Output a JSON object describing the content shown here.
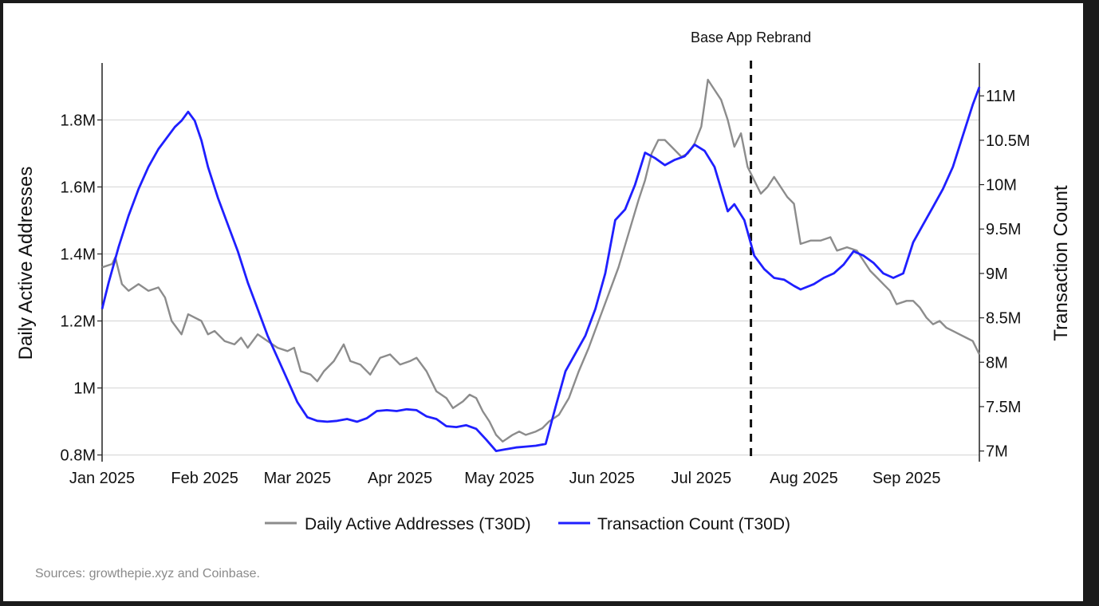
{
  "source_note": "Sources: growthepie.xyz and Coinbase.",
  "chart_data": {
    "type": "line",
    "x_tick_labels": [
      "Jan 2025",
      "Feb 2025",
      "Mar 2025",
      "Apr 2025",
      "May 2025",
      "Jun 2025",
      "Jul 2025",
      "Aug 2025",
      "Sep 2025"
    ],
    "x_tick_dates": [
      "2025-01-01",
      "2025-02-01",
      "2025-03-01",
      "2025-04-01",
      "2025-05-01",
      "2025-06-01",
      "2025-07-01",
      "2025-08-01",
      "2025-09-01"
    ],
    "xlim": [
      "2025-01-01",
      "2025-09-23"
    ],
    "y_left": {
      "label": "Daily Active Addresses",
      "ticks": [
        0.8,
        1.0,
        1.2,
        1.4,
        1.6,
        1.8
      ],
      "tick_labels": [
        "0.8M",
        "1M",
        "1.2M",
        "1.4M",
        "1.6M",
        "1.8M"
      ],
      "unit": "M",
      "ylim": [
        0.78,
        1.97
      ]
    },
    "y_right": {
      "label": "Transaction Count",
      "ticks": [
        7,
        7.5,
        8,
        8.5,
        9,
        9.5,
        10,
        10.5,
        11
      ],
      "tick_labels": [
        "7M",
        "7.5M",
        "8M",
        "8.5M",
        "9M",
        "9.5M",
        "10M",
        "10.5M",
        "11M"
      ],
      "unit": "M",
      "ylim": [
        6.88,
        11.37
      ]
    },
    "grid": "horizontal",
    "legend_position": "bottom-center",
    "annotation": {
      "label": "Base App Rebrand",
      "date": "2025-07-16",
      "style": "dashed vertical line"
    },
    "series": [
      {
        "name": "Daily Active Addresses (T30D)",
        "axis": "left",
        "color": "#8c8c8c",
        "points": [
          [
            "2025-01-01",
            1.36
          ],
          [
            "2025-01-04",
            1.37
          ],
          [
            "2025-01-05",
            1.39
          ],
          [
            "2025-01-07",
            1.31
          ],
          [
            "2025-01-09",
            1.29
          ],
          [
            "2025-01-12",
            1.31
          ],
          [
            "2025-01-15",
            1.29
          ],
          [
            "2025-01-18",
            1.3
          ],
          [
            "2025-01-20",
            1.27
          ],
          [
            "2025-01-22",
            1.2
          ],
          [
            "2025-01-25",
            1.16
          ],
          [
            "2025-01-27",
            1.22
          ],
          [
            "2025-01-29",
            1.21
          ],
          [
            "2025-01-31",
            1.2
          ],
          [
            "2025-02-02",
            1.16
          ],
          [
            "2025-02-04",
            1.17
          ],
          [
            "2025-02-07",
            1.14
          ],
          [
            "2025-02-10",
            1.13
          ],
          [
            "2025-02-12",
            1.15
          ],
          [
            "2025-02-14",
            1.12
          ],
          [
            "2025-02-17",
            1.16
          ],
          [
            "2025-02-20",
            1.14
          ],
          [
            "2025-02-23",
            1.12
          ],
          [
            "2025-02-26",
            1.11
          ],
          [
            "2025-02-28",
            1.12
          ],
          [
            "2025-03-02",
            1.05
          ],
          [
            "2025-03-05",
            1.04
          ],
          [
            "2025-03-07",
            1.02
          ],
          [
            "2025-03-09",
            1.05
          ],
          [
            "2025-03-12",
            1.08
          ],
          [
            "2025-03-15",
            1.13
          ],
          [
            "2025-03-17",
            1.08
          ],
          [
            "2025-03-20",
            1.07
          ],
          [
            "2025-03-23",
            1.04
          ],
          [
            "2025-03-26",
            1.09
          ],
          [
            "2025-03-29",
            1.1
          ],
          [
            "2025-04-01",
            1.07
          ],
          [
            "2025-04-04",
            1.08
          ],
          [
            "2025-04-06",
            1.09
          ],
          [
            "2025-04-09",
            1.05
          ],
          [
            "2025-04-12",
            0.99
          ],
          [
            "2025-04-15",
            0.97
          ],
          [
            "2025-04-17",
            0.94
          ],
          [
            "2025-04-20",
            0.96
          ],
          [
            "2025-04-22",
            0.98
          ],
          [
            "2025-04-24",
            0.97
          ],
          [
            "2025-04-26",
            0.93
          ],
          [
            "2025-04-28",
            0.9
          ],
          [
            "2025-04-30",
            0.86
          ],
          [
            "2025-05-02",
            0.84
          ],
          [
            "2025-05-05",
            0.86
          ],
          [
            "2025-05-07",
            0.87
          ],
          [
            "2025-05-09",
            0.86
          ],
          [
            "2025-05-12",
            0.87
          ],
          [
            "2025-05-14",
            0.88
          ],
          [
            "2025-05-16",
            0.9
          ],
          [
            "2025-05-19",
            0.92
          ],
          [
            "2025-05-22",
            0.97
          ],
          [
            "2025-05-25",
            1.05
          ],
          [
            "2025-05-28",
            1.12
          ],
          [
            "2025-05-31",
            1.2
          ],
          [
            "2025-06-03",
            1.28
          ],
          [
            "2025-06-06",
            1.36
          ],
          [
            "2025-06-09",
            1.46
          ],
          [
            "2025-06-12",
            1.56
          ],
          [
            "2025-06-14",
            1.62
          ],
          [
            "2025-06-16",
            1.7
          ],
          [
            "2025-06-18",
            1.74
          ],
          [
            "2025-06-20",
            1.74
          ],
          [
            "2025-06-22",
            1.72
          ],
          [
            "2025-06-25",
            1.69
          ],
          [
            "2025-06-27",
            1.7
          ],
          [
            "2025-06-29",
            1.73
          ],
          [
            "2025-07-01",
            1.78
          ],
          [
            "2025-07-02",
            1.85
          ],
          [
            "2025-07-03",
            1.92
          ],
          [
            "2025-07-05",
            1.89
          ],
          [
            "2025-07-07",
            1.86
          ],
          [
            "2025-07-09",
            1.8
          ],
          [
            "2025-07-11",
            1.72
          ],
          [
            "2025-07-13",
            1.76
          ],
          [
            "2025-07-15",
            1.66
          ],
          [
            "2025-07-17",
            1.62
          ],
          [
            "2025-07-19",
            1.58
          ],
          [
            "2025-07-21",
            1.6
          ],
          [
            "2025-07-23",
            1.63
          ],
          [
            "2025-07-25",
            1.6
          ],
          [
            "2025-07-27",
            1.57
          ],
          [
            "2025-07-29",
            1.55
          ],
          [
            "2025-07-31",
            1.43
          ],
          [
            "2025-08-03",
            1.44
          ],
          [
            "2025-08-06",
            1.44
          ],
          [
            "2025-08-09",
            1.45
          ],
          [
            "2025-08-11",
            1.41
          ],
          [
            "2025-08-14",
            1.42
          ],
          [
            "2025-08-17",
            1.41
          ],
          [
            "2025-08-19",
            1.38
          ],
          [
            "2025-08-21",
            1.35
          ],
          [
            "2025-08-23",
            1.33
          ],
          [
            "2025-08-25",
            1.31
          ],
          [
            "2025-08-27",
            1.29
          ],
          [
            "2025-08-29",
            1.25
          ],
          [
            "2025-09-01",
            1.26
          ],
          [
            "2025-09-03",
            1.26
          ],
          [
            "2025-09-05",
            1.24
          ],
          [
            "2025-09-07",
            1.21
          ],
          [
            "2025-09-09",
            1.19
          ],
          [
            "2025-09-11",
            1.2
          ],
          [
            "2025-09-13",
            1.18
          ],
          [
            "2025-09-15",
            1.17
          ],
          [
            "2025-09-17",
            1.16
          ],
          [
            "2025-09-19",
            1.15
          ],
          [
            "2025-09-21",
            1.14
          ],
          [
            "2025-09-23",
            1.1
          ]
        ]
      },
      {
        "name": "Transaction Count (T30D)",
        "axis": "right",
        "color": "#1f1fff",
        "points": [
          [
            "2025-01-01",
            8.6
          ],
          [
            "2025-01-03",
            8.9
          ],
          [
            "2025-01-06",
            9.3
          ],
          [
            "2025-01-09",
            9.65
          ],
          [
            "2025-01-12",
            9.95
          ],
          [
            "2025-01-15",
            10.2
          ],
          [
            "2025-01-18",
            10.4
          ],
          [
            "2025-01-21",
            10.55
          ],
          [
            "2025-01-23",
            10.65
          ],
          [
            "2025-01-25",
            10.72
          ],
          [
            "2025-01-27",
            10.82
          ],
          [
            "2025-01-29",
            10.72
          ],
          [
            "2025-01-31",
            10.5
          ],
          [
            "2025-02-02",
            10.2
          ],
          [
            "2025-02-05",
            9.85
          ],
          [
            "2025-02-08",
            9.55
          ],
          [
            "2025-02-11",
            9.25
          ],
          [
            "2025-02-14",
            8.9
          ],
          [
            "2025-02-17",
            8.6
          ],
          [
            "2025-02-20",
            8.3
          ],
          [
            "2025-02-23",
            8.05
          ],
          [
            "2025-02-26",
            7.8
          ],
          [
            "2025-03-01",
            7.55
          ],
          [
            "2025-03-04",
            7.38
          ],
          [
            "2025-03-07",
            7.34
          ],
          [
            "2025-03-10",
            7.33
          ],
          [
            "2025-03-13",
            7.34
          ],
          [
            "2025-03-16",
            7.36
          ],
          [
            "2025-03-19",
            7.33
          ],
          [
            "2025-03-22",
            7.37
          ],
          [
            "2025-03-25",
            7.45
          ],
          [
            "2025-03-28",
            7.46
          ],
          [
            "2025-03-31",
            7.45
          ],
          [
            "2025-04-03",
            7.47
          ],
          [
            "2025-04-06",
            7.46
          ],
          [
            "2025-04-09",
            7.39
          ],
          [
            "2025-04-12",
            7.36
          ],
          [
            "2025-04-15",
            7.28
          ],
          [
            "2025-04-18",
            7.27
          ],
          [
            "2025-04-21",
            7.29
          ],
          [
            "2025-04-24",
            7.25
          ],
          [
            "2025-04-27",
            7.13
          ],
          [
            "2025-04-30",
            7.0
          ],
          [
            "2025-05-03",
            7.02
          ],
          [
            "2025-05-06",
            7.04
          ],
          [
            "2025-05-09",
            7.05
          ],
          [
            "2025-05-12",
            7.06
          ],
          [
            "2025-05-15",
            7.08
          ],
          [
            "2025-05-18",
            7.5
          ],
          [
            "2025-05-21",
            7.9
          ],
          [
            "2025-05-24",
            8.1
          ],
          [
            "2025-05-27",
            8.3
          ],
          [
            "2025-05-30",
            8.6
          ],
          [
            "2025-06-02",
            9.0
          ],
          [
            "2025-06-05",
            9.6
          ],
          [
            "2025-06-08",
            9.72
          ],
          [
            "2025-06-11",
            10.0
          ],
          [
            "2025-06-14",
            10.36
          ],
          [
            "2025-06-17",
            10.3
          ],
          [
            "2025-06-20",
            10.22
          ],
          [
            "2025-06-23",
            10.28
          ],
          [
            "2025-06-26",
            10.32
          ],
          [
            "2025-06-29",
            10.45
          ],
          [
            "2025-07-02",
            10.38
          ],
          [
            "2025-07-05",
            10.2
          ],
          [
            "2025-07-07",
            9.95
          ],
          [
            "2025-07-09",
            9.7
          ],
          [
            "2025-07-11",
            9.78
          ],
          [
            "2025-07-14",
            9.6
          ],
          [
            "2025-07-17",
            9.2
          ],
          [
            "2025-07-20",
            9.05
          ],
          [
            "2025-07-23",
            8.95
          ],
          [
            "2025-07-26",
            8.93
          ],
          [
            "2025-07-29",
            8.86
          ],
          [
            "2025-07-31",
            8.82
          ],
          [
            "2025-08-04",
            8.88
          ],
          [
            "2025-08-07",
            8.95
          ],
          [
            "2025-08-10",
            9.0
          ],
          [
            "2025-08-13",
            9.1
          ],
          [
            "2025-08-16",
            9.25
          ],
          [
            "2025-08-19",
            9.2
          ],
          [
            "2025-08-22",
            9.12
          ],
          [
            "2025-08-25",
            9.0
          ],
          [
            "2025-08-28",
            8.95
          ],
          [
            "2025-08-31",
            9.0
          ],
          [
            "2025-09-03",
            9.35
          ],
          [
            "2025-09-06",
            9.55
          ],
          [
            "2025-09-09",
            9.75
          ],
          [
            "2025-09-12",
            9.95
          ],
          [
            "2025-09-15",
            10.2
          ],
          [
            "2025-09-18",
            10.55
          ],
          [
            "2025-09-21",
            10.9
          ],
          [
            "2025-09-23",
            11.1
          ]
        ]
      }
    ]
  }
}
